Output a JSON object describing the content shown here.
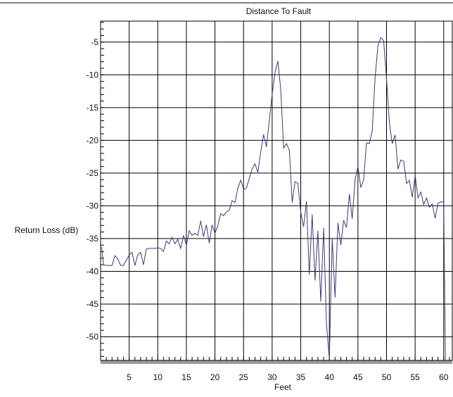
{
  "chart_data": {
    "type": "line",
    "title": "Distance To Fault",
    "xlabel": "Feet",
    "ylabel": "Return Loss (dB)",
    "xlim": [
      0,
      61.5
    ],
    "ylim": [
      -53.6,
      -1.8
    ],
    "x_ticks": [
      5,
      10,
      15,
      20,
      25,
      30,
      35,
      40,
      45,
      50,
      55,
      60
    ],
    "x_tick_labels": [
      "5",
      "10",
      "15",
      "20",
      "25",
      "30",
      "35",
      "40",
      "45",
      "50",
      "55",
      "60"
    ],
    "y_ticks": [
      -5,
      -10,
      -15,
      -20,
      -25,
      -30,
      -35,
      -40,
      -45,
      -50
    ],
    "y_tick_labels": [
      "-5",
      "-10",
      "-15",
      "-20",
      "-25",
      "-30",
      "-35",
      "-40",
      "-45",
      "-50"
    ],
    "grid": true,
    "colors": {
      "line": "#3b3b78",
      "axis_band": "#9a9a9a"
    },
    "series": [
      {
        "x": [
          0.2,
          0.5,
          1,
          1.5,
          2,
          2.5,
          3,
          3.5,
          4,
          4.5,
          5,
          5.5,
          6,
          6.5,
          7,
          7.5,
          8,
          8.5,
          9,
          9.5,
          10,
          10.5,
          11,
          11.5,
          12,
          12.5,
          13,
          13.5,
          14,
          14.5,
          15,
          15.5,
          16,
          16.5,
          17,
          17.5,
          18,
          18.5,
          19,
          19.5,
          20,
          20.5,
          21,
          21.5,
          22,
          22.5,
          23,
          23.5,
          24,
          24.5,
          25,
          25.5,
          26,
          26.5,
          27,
          27.5,
          28,
          28.5,
          29,
          29.5,
          30,
          30.5,
          31,
          31.5,
          32,
          32.5,
          33,
          33.5,
          34,
          34.5,
          35,
          35.5,
          36,
          36.5,
          37,
          37.5,
          38,
          38.5,
          39,
          39.5,
          40,
          40.5,
          41,
          41.5,
          42,
          42.5,
          43,
          43.5,
          44,
          44.5,
          45,
          45.5,
          46,
          46.5,
          47,
          47.5,
          48,
          48.5,
          49,
          49.5,
          50,
          50.5,
          51,
          51.5,
          52,
          52.5,
          53,
          53.5,
          54,
          54.5,
          55,
          55.5,
          56,
          56.5,
          57,
          57.5,
          58,
          58.5,
          59,
          59.5,
          60,
          60.3,
          60.4
        ],
        "y": [
          -36.3,
          -39,
          -39.1,
          -39.1,
          -39.1,
          -37.6,
          -38.1,
          -39.1,
          -39.1,
          -38.3,
          -37.5,
          -37.1,
          -39.1,
          -37.5,
          -37.1,
          -39,
          -36.6,
          -36.5,
          -36.5,
          -36.5,
          -36.4,
          -36.5,
          -37,
          -35.4,
          -35.8,
          -34.8,
          -35.8,
          -35.1,
          -36.5,
          -34.5,
          -36,
          -33.8,
          -34.5,
          -34.2,
          -34.5,
          -32.3,
          -34.7,
          -32.9,
          -35.7,
          -32.9,
          -34.2,
          -33,
          -31.2,
          -31.5,
          -30.9,
          -30.7,
          -29.2,
          -29.5,
          -27.3,
          -26.1,
          -27.5,
          -27.3,
          -25.8,
          -24.4,
          -23.6,
          -24.9,
          -21.8,
          -19.1,
          -21,
          -17,
          -13,
          -9.6,
          -7.9,
          -12.2,
          -21.2,
          -20.5,
          -21.5,
          -29.5,
          -26.3,
          -26.6,
          -31,
          -33.2,
          -29.3,
          -40.5,
          -31.3,
          -41.4,
          -33.8,
          -44.6,
          -33.4,
          -48,
          -53.4,
          -35,
          -44,
          -32.6,
          -36,
          -32.2,
          -33.3,
          -28.2,
          -32,
          -26,
          -24,
          -27.2,
          -26,
          -20.4,
          -20.5,
          -18.5,
          -10.5,
          -5.5,
          -4.3,
          -4.8,
          -10.6,
          -17.3,
          -20.5,
          -19.2,
          -24.4,
          -23,
          -23.2,
          -26.6,
          -26.1,
          -28.7,
          -25.4,
          -28.8,
          -27.9,
          -29.8,
          -28.8,
          -30.2,
          -29.7,
          -31.9,
          -29.6,
          -29.4,
          -29.4,
          -53.4,
          -53.4
        ]
      }
    ]
  }
}
